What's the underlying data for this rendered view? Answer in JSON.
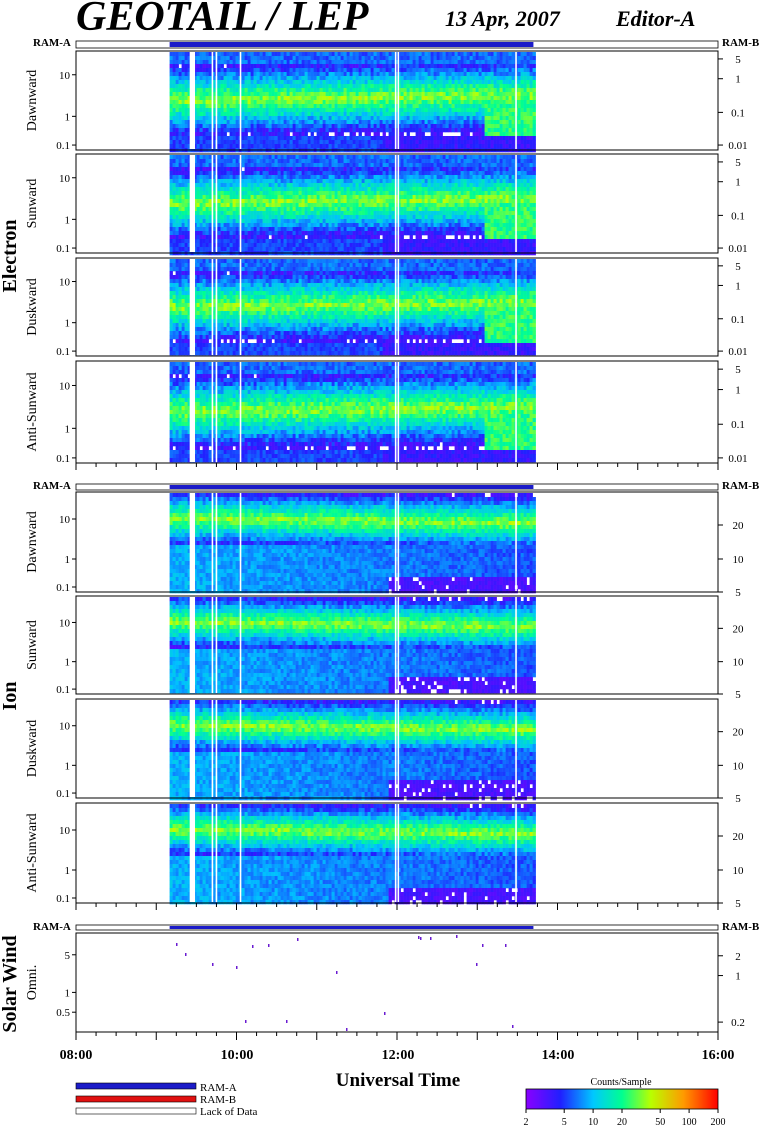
{
  "header": {
    "instrument": "GEOTAIL / LEP",
    "date": "13 Apr, 2007",
    "editor": "Editor-A"
  },
  "groups": [
    {
      "name": "Electron",
      "panels": [
        "Dawnward",
        "Sunward",
        "Duskward",
        "Anti-Sunward"
      ]
    },
    {
      "name": "Ion",
      "panels": [
        "Dawnward",
        "Sunward",
        "Duskward",
        "Anti-Sunward"
      ]
    },
    {
      "name": "Solar Wind",
      "panels": [
        "Omni."
      ]
    }
  ],
  "ram_labels": {
    "a": "RAM-A",
    "b": "RAM-B"
  },
  "left_ticks": {
    "log": [
      "10",
      "1",
      "0.1"
    ],
    "solar": [
      "5",
      "1",
      "0.5"
    ]
  },
  "right_ticks": {
    "electron": [
      "5",
      "1",
      "0.1",
      "0.01"
    ],
    "ion": [
      "20",
      "10",
      "5"
    ],
    "solar": [
      "2",
      "1",
      "0.2"
    ]
  },
  "x_axis": {
    "label": "Universal Time",
    "ticks": [
      "08:00",
      "10:00",
      "12:00",
      "14:00",
      "16:00"
    ]
  },
  "legend": {
    "ram_a": "RAM-A",
    "ram_b": "RAM-B",
    "lack": "Lack of Data",
    "colorbar_title": "Counts/Sample",
    "colorbar_ticks": [
      "2",
      "5",
      "10",
      "20",
      "50",
      "100",
      "200"
    ]
  },
  "colors": {
    "ram_a": "#1b1bc8",
    "ram_b": "#e01010",
    "data_color_scale": [
      "#8000ff",
      "#2020ff",
      "#00c0ff",
      "#00ff90",
      "#c0ff00",
      "#ff9000",
      "#ff0000"
    ]
  },
  "chart_data": {
    "type": "heatmap",
    "title": "GEOTAIL / LEP",
    "xlabel": "Universal Time",
    "x_range_hours": [
      "08:00",
      "16:00"
    ],
    "data_coverage": {
      "start": "09:10",
      "end": "13:42"
    },
    "gaps": [
      "09:25-09:29",
      "09:42",
      "09:45",
      "10:03",
      "11:59",
      "12:01",
      "13:29"
    ],
    "color_scale": {
      "label": "Counts/Sample",
      "min": 2,
      "max": 200,
      "scale": "log"
    },
    "electron_panels": [
      "Dawnward",
      "Sunward",
      "Duskward",
      "Anti-Sunward"
    ],
    "ion_panels": [
      "Dawnward",
      "Sunward",
      "Duskward",
      "Anti-Sunward"
    ],
    "solar_wind": [
      "Omni."
    ]
  }
}
